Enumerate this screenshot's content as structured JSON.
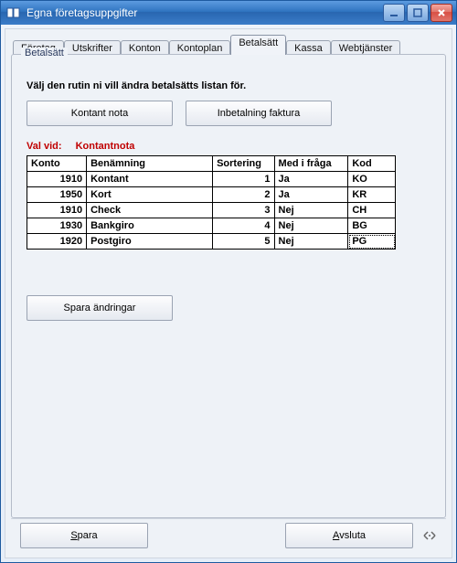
{
  "window": {
    "title": "Egna företagsuppgifter",
    "colors": {
      "titlebar_start": "#5d9be0",
      "titlebar_end": "#3b7cc8",
      "close_btn": "#d84f44"
    }
  },
  "tabs": [
    {
      "label": "Företag",
      "active": false
    },
    {
      "label": "Utskrifter",
      "active": false
    },
    {
      "label": "Konton",
      "active": false
    },
    {
      "label": "Kontoplan",
      "active": false
    },
    {
      "label": "Betalsätt",
      "active": true
    },
    {
      "label": "Kassa",
      "active": false
    },
    {
      "label": "Webtjänster",
      "active": false
    }
  ],
  "group": {
    "legend": "Betalsätt",
    "instruction": "Välj den rutin ni vill ändra betalsätts listan för.",
    "buttons": {
      "kontant_nota": "Kontant nota",
      "inbetalning_faktura": "Inbetalning faktura"
    },
    "val": {
      "label": "Val vid:",
      "value": "Kontantnota"
    },
    "save_changes": "Spara ändringar"
  },
  "table": {
    "columns": [
      "Konto",
      "Benämning",
      "Sortering",
      "Med i fråga",
      "Kod"
    ],
    "rows": [
      {
        "konto": "1910",
        "ben": "Kontant",
        "sort": "1",
        "med": "Ja",
        "kod": "KO",
        "selected": false
      },
      {
        "konto": "1950",
        "ben": "Kort",
        "sort": "2",
        "med": "Ja",
        "kod": "KR",
        "selected": false
      },
      {
        "konto": "1910",
        "ben": "Check",
        "sort": "3",
        "med": "Nej",
        "kod": "CH",
        "selected": false
      },
      {
        "konto": "1930",
        "ben": "Bankgiro",
        "sort": "4",
        "med": "Nej",
        "kod": "BG",
        "selected": false
      },
      {
        "konto": "1920",
        "ben": "Postgiro",
        "sort": "5",
        "med": "Nej",
        "kod": "PG",
        "selected": true
      }
    ]
  },
  "bottom": {
    "save": "Spara",
    "close": "Avsluta"
  }
}
